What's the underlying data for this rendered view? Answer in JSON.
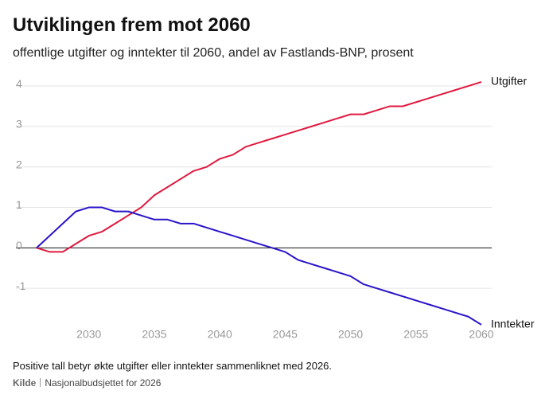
{
  "chart_data": {
    "type": "line",
    "title": "Utviklingen frem mot 2060",
    "subtitle": "offentlige utgifter og inntekter til 2060, andel av Fastlands-BNP, prosent",
    "note": "Positive tall betyr økte utgifter eller inntekter sammenliknet med 2026.",
    "source_label": "Kilde",
    "source": "Nasjonalbudsjettet for 2026",
    "x": [
      2026,
      2027,
      2028,
      2029,
      2030,
      2031,
      2032,
      2033,
      2034,
      2035,
      2036,
      2037,
      2038,
      2039,
      2040,
      2041,
      2042,
      2043,
      2044,
      2045,
      2046,
      2047,
      2048,
      2049,
      2050,
      2051,
      2052,
      2053,
      2054,
      2055,
      2056,
      2057,
      2058,
      2059,
      2060
    ],
    "series": [
      {
        "name": "Utgifter",
        "color": "#e0193f",
        "values": [
          0,
          -0.1,
          -0.1,
          0.1,
          0.3,
          0.4,
          0.6,
          0.8,
          1.0,
          1.3,
          1.5,
          1.7,
          1.9,
          2.0,
          2.2,
          2.3,
          2.5,
          2.6,
          2.7,
          2.8,
          2.9,
          3.0,
          3.1,
          3.2,
          3.3,
          3.3,
          3.4,
          3.5,
          3.5,
          3.6,
          3.7,
          3.8,
          3.9,
          4.0,
          4.1
        ]
      },
      {
        "name": "Inntekter",
        "color": "#2a14c8",
        "values": [
          0,
          0.3,
          0.6,
          0.9,
          1.0,
          1.0,
          0.9,
          0.9,
          0.8,
          0.7,
          0.7,
          0.6,
          0.6,
          0.5,
          0.4,
          0.3,
          0.2,
          0.1,
          0.0,
          -0.1,
          -0.3,
          -0.4,
          -0.5,
          -0.6,
          -0.7,
          -0.9,
          -1.0,
          -1.1,
          -1.2,
          -1.3,
          -1.4,
          -1.5,
          -1.6,
          -1.7,
          -1.9
        ]
      }
    ],
    "xlim": [
      2026,
      2060
    ],
    "xticks": [
      2030,
      2035,
      2040,
      2045,
      2050,
      2055,
      2060
    ],
    "ylim": [
      -2,
      4.3
    ],
    "yticks": [
      -1,
      0,
      1,
      2,
      3,
      4
    ],
    "grid": true
  }
}
